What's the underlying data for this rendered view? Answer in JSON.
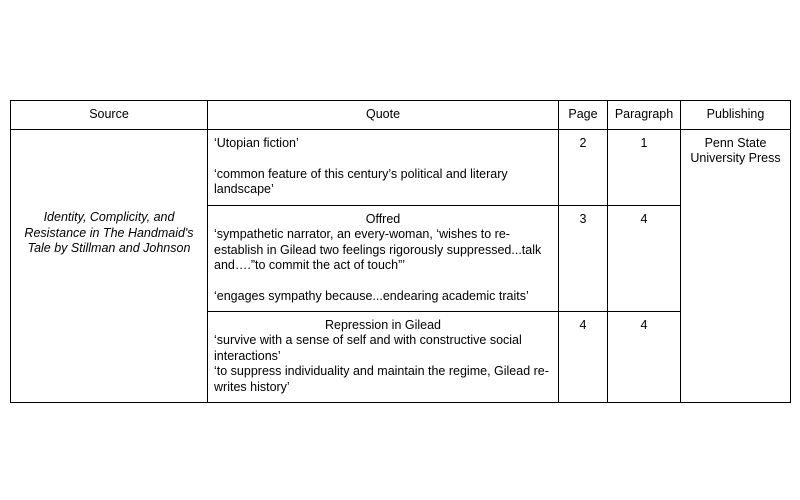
{
  "headers": [
    "Source",
    "Quote",
    "Page",
    "Paragraph",
    "Publishing"
  ],
  "source": "Identity, Complicity, and Resistance in The Handmaid's Tale by Stillman and Johnson",
  "publishing": "Penn State University Press",
  "rows": [
    {
      "heading": "",
      "quote": "‘Utopian fiction’\n\n‘common feature of this century’s political and literary landscape’",
      "page": "2",
      "paragraph": "1"
    },
    {
      "heading": "Offred",
      "quote": " ‘sympathetic narrator, an every-woman, ‘wishes to re-establish in Gilead two feelings rigorously suppressed...talk and….”to commit the act of touch”’\n\n‘engages sympathy because...endearing academic traits’",
      "page": "3",
      "paragraph": "4"
    },
    {
      "heading": "Repression in Gilead",
      "quote": "‘survive with a sense of self and with constructive social interactions’\n‘to suppress individuality and maintain the regime, Gilead re-writes history’",
      "page": "4",
      "paragraph": "4"
    }
  ]
}
